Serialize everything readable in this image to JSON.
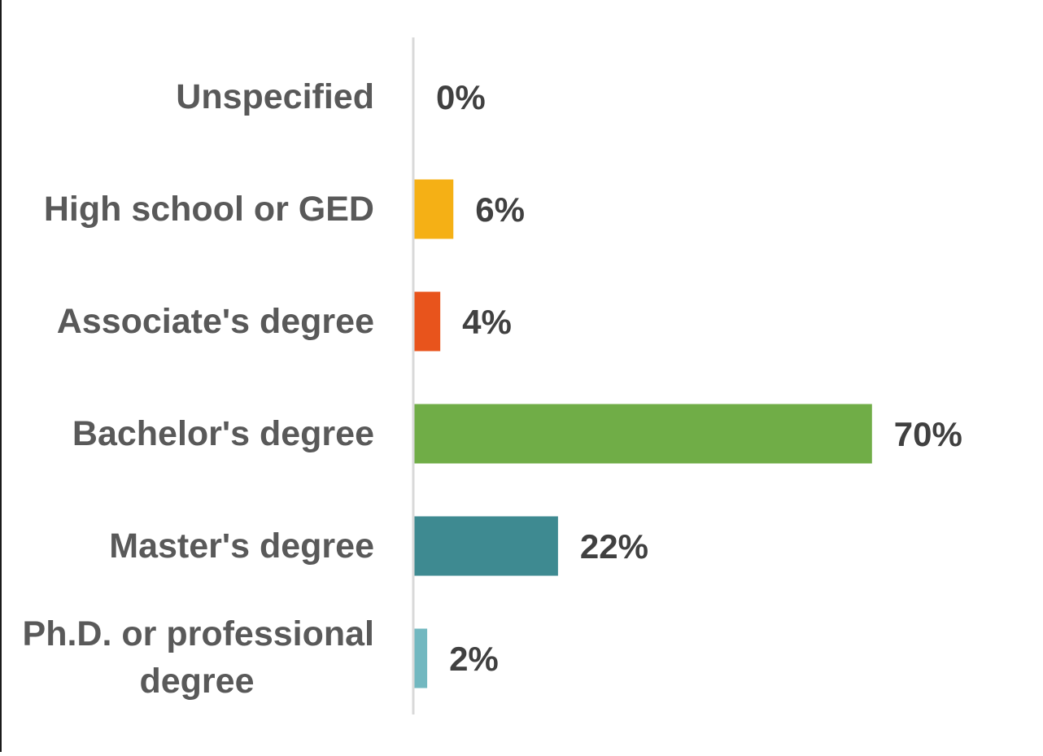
{
  "chart_data": {
    "type": "bar",
    "orientation": "horizontal",
    "categories": [
      "Unspecified",
      "High school or GED",
      "Associate's degree",
      "Bachelor's degree",
      "Master's degree",
      "Ph.D. or professional degree"
    ],
    "values": [
      0,
      6,
      4,
      70,
      22,
      2
    ],
    "data_labels": [
      "0%",
      "6%",
      "4%",
      "70%",
      "22%",
      "2%"
    ],
    "colors": [
      "#808080",
      "#F5B015",
      "#E8541C",
      "#70AD47",
      "#3E8A91",
      "#72B8C0"
    ],
    "xlim": [
      0,
      80
    ],
    "title": "",
    "xlabel": "",
    "ylabel": "",
    "grid": false,
    "legend": "none"
  }
}
